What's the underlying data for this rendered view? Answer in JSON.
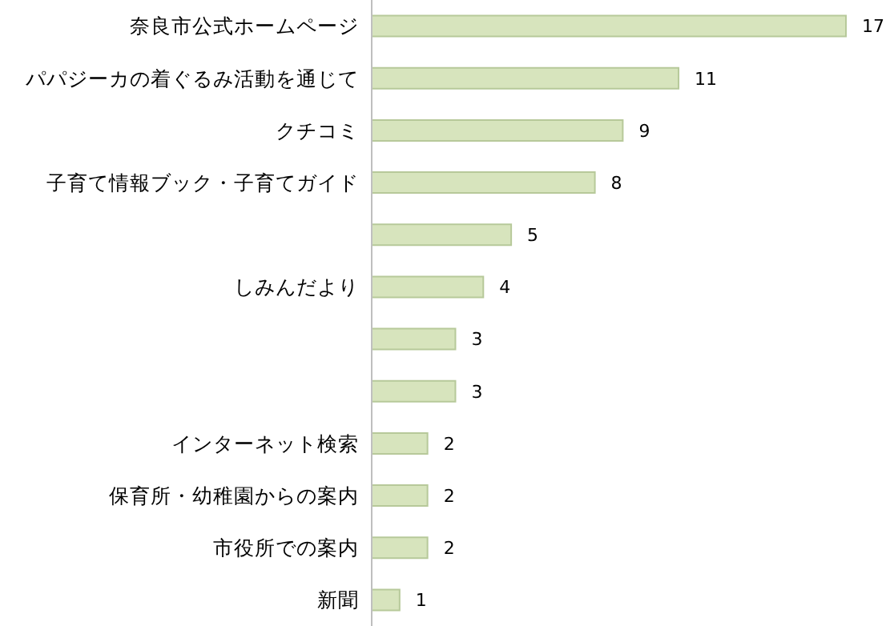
{
  "chart_data": {
    "type": "bar",
    "orientation": "horizontal",
    "categories": [
      "奈良市公式ホームページ",
      "パパジーカの着ぐるみ活動を通じて",
      "クチコミ",
      "子育て情報ブック・子育てガイド",
      null,
      "しみんだより",
      null,
      null,
      "インターネット検索",
      "保育所・幼稚園からの案内",
      "市役所での案内",
      "新聞"
    ],
    "values": [
      17,
      11,
      9,
      8,
      5,
      4,
      3,
      3,
      2,
      2,
      2,
      1
    ],
    "color": "#d7e4bd",
    "data_labels": true
  }
}
